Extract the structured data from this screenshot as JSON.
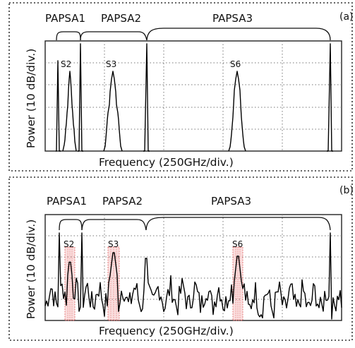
{
  "panels": [
    {
      "tag": "(a)",
      "xlabel": "Frequency (250GHz/div.)",
      "ylabel": "Power (10 dB/div.)",
      "groups": [
        "PAPSA1",
        "PAPSA2",
        "PAPSA3"
      ],
      "signals": [
        "S2",
        "S3",
        "S6"
      ]
    },
    {
      "tag": "(b)",
      "xlabel": "Frequency (250GHz/div.)",
      "ylabel": "Power (10 dB/div.)",
      "groups": [
        "PAPSA1",
        "PAPSA2",
        "PAPSA3"
      ],
      "signals": [
        "S2",
        "S3",
        "S6"
      ]
    }
  ]
}
